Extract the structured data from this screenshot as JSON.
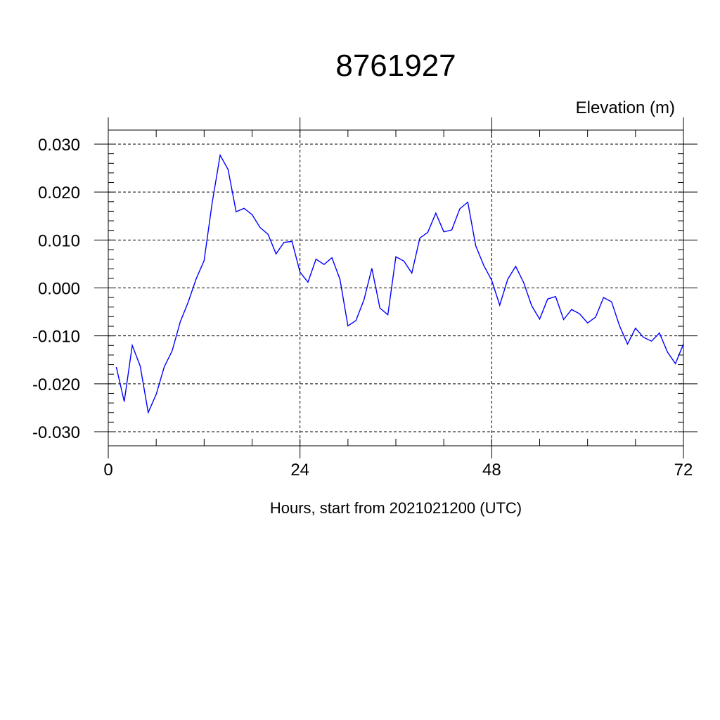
{
  "chart_data": {
    "type": "line",
    "title": "8761927",
    "ylabel": "Elevation (m)",
    "xlabel": "Hours, start from 2021021200 (UTC)",
    "xlim": [
      0,
      72
    ],
    "ylim": [
      -0.03,
      0.03
    ],
    "xticks": [
      0,
      24,
      48,
      72
    ],
    "xtick_labels": [
      "0",
      "24",
      "48",
      "72"
    ],
    "yticks": [
      -0.03,
      -0.02,
      -0.01,
      0,
      0.01,
      0.02,
      0.03
    ],
    "ytick_labels": [
      "-0.030",
      "-0.020",
      "-0.010",
      "0.000",
      "0.010",
      "0.020",
      "0.030"
    ],
    "grid": true,
    "series": [
      {
        "color": "#0000ff",
        "x": [
          1,
          2,
          3,
          4,
          5,
          6,
          7,
          8,
          9,
          10,
          11,
          12,
          13,
          14,
          15,
          16,
          17,
          18,
          19,
          20,
          21,
          22,
          23,
          24,
          25,
          26,
          27,
          28,
          29,
          30,
          31,
          32,
          33,
          34,
          35,
          36,
          37,
          38,
          39,
          40,
          41,
          42,
          43,
          44,
          45,
          46,
          47,
          48,
          49,
          50,
          51,
          52,
          53,
          54,
          55,
          56,
          57,
          58,
          59,
          60,
          61,
          62,
          63,
          64,
          65,
          66,
          67,
          68,
          69,
          70,
          71,
          72
        ],
        "values": [
          -0.0165,
          -0.0237,
          -0.012,
          -0.0163,
          -0.026,
          -0.0222,
          -0.0165,
          -0.0131,
          -0.0071,
          -0.003,
          0.0019,
          0.0057,
          0.0177,
          0.0277,
          0.0247,
          0.0159,
          0.0166,
          0.0153,
          0.0126,
          0.0112,
          0.0071,
          0.0095,
          0.0097,
          0.0033,
          0.0012,
          0.006,
          0.0049,
          0.0063,
          0.0018,
          -0.0079,
          -0.0068,
          -0.0025,
          0.0041,
          -0.0042,
          -0.0056,
          0.0065,
          0.0056,
          0.0031,
          0.0104,
          0.0116,
          0.0156,
          0.0117,
          0.0121,
          0.0165,
          0.0179,
          0.0088,
          0.0047,
          0.0016,
          -0.0036,
          0.0018,
          0.0045,
          0.0011,
          -0.0037,
          -0.0065,
          -0.0023,
          -0.0018,
          -0.0066,
          -0.0045,
          -0.0054,
          -0.0073,
          -0.0061,
          -0.002,
          -0.0029,
          -0.0079,
          -0.0117,
          -0.0084,
          -0.0103,
          -0.0111,
          -0.0094,
          -0.0134,
          -0.0158,
          -0.0117
        ]
      }
    ]
  }
}
